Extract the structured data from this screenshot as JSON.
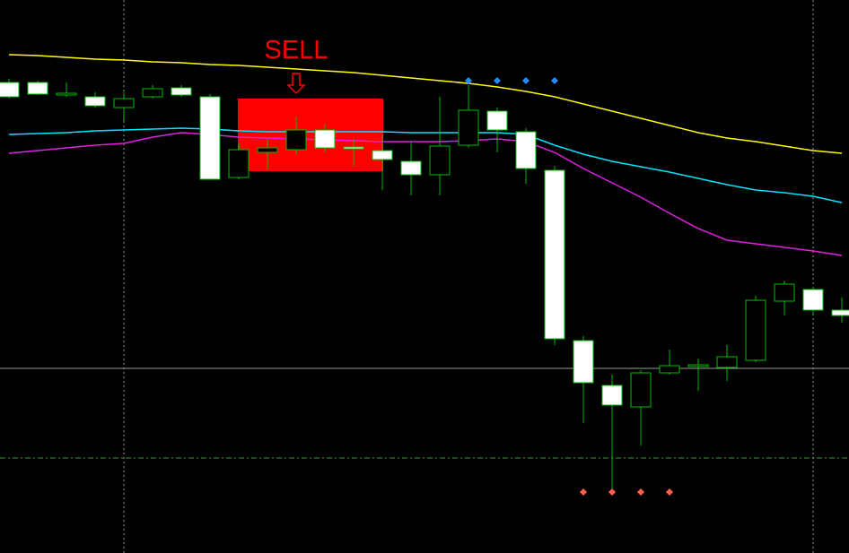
{
  "chart_data": {
    "type": "candlestick",
    "ylim": [
      0,
      617
    ],
    "candle_up_color": "#000000",
    "candle_down_color": "#ffffff",
    "wick_color": "#00c000",
    "open": [
      525,
      525,
      511,
      509,
      497,
      509,
      519,
      509,
      419,
      447,
      450,
      472,
      453,
      449,
      437,
      422,
      455,
      493,
      470,
      427,
      237,
      187,
      163,
      201,
      208,
      207,
      215,
      281,
      294,
      271
    ],
    "high": [
      529,
      527,
      525,
      514,
      514,
      522,
      522,
      512,
      457,
      462,
      487,
      479,
      462,
      467,
      459,
      509,
      522,
      497,
      474,
      432,
      242,
      199,
      204,
      227,
      217,
      232,
      287,
      304,
      297,
      285
    ],
    "low": [
      507,
      511,
      509,
      497,
      482,
      507,
      509,
      417,
      417,
      427,
      445,
      447,
      432,
      405,
      399,
      399,
      452,
      447,
      412,
      232,
      145,
      69,
      120,
      199,
      181,
      192,
      213,
      265,
      267,
      257
    ],
    "close": [
      509,
      512,
      513,
      499,
      507,
      518,
      511,
      417,
      450,
      452,
      472,
      452,
      451,
      439,
      422,
      454,
      494,
      472,
      429,
      239,
      190,
      165,
      201,
      209,
      210,
      219,
      282,
      300,
      271,
      265
    ],
    "lines": [
      {
        "color": "#ffff00",
        "values": [
          556,
          555,
          553,
          551,
          550,
          548,
          547,
          545,
          544,
          542,
          540,
          538,
          536,
          533,
          530,
          527,
          524,
          520,
          515,
          509,
          501,
          493,
          485,
          477,
          469,
          463,
          459,
          454,
          449,
          446
        ]
      },
      {
        "color": "#00e5ff",
        "values": [
          467,
          468,
          469,
          471,
          472,
          473,
          474,
          473,
          471,
          470,
          470,
          470,
          470,
          470,
          469,
          469,
          469,
          469,
          467,
          455,
          445,
          437,
          431,
          425,
          418,
          411,
          405,
          402,
          398,
          391
        ]
      },
      {
        "color": "#e020e0",
        "values": [
          446,
          449,
          452,
          455,
          457,
          464,
          469,
          467,
          464,
          463,
          462,
          461,
          460,
          459,
          459,
          459,
          460,
          462,
          459,
          447,
          429,
          413,
          397,
          379,
          362,
          349,
          345,
          341,
          337,
          332
        ]
      }
    ],
    "markers": [
      {
        "color": "#1e90ff",
        "values": [
          null,
          null,
          null,
          null,
          null,
          null,
          null,
          null,
          null,
          null,
          null,
          null,
          null,
          null,
          null,
          null,
          527,
          527,
          527,
          527,
          null,
          null,
          null,
          null,
          null,
          null,
          null,
          null,
          null,
          null
        ]
      },
      {
        "color": "#ff6050",
        "values": [
          null,
          null,
          null,
          null,
          null,
          null,
          null,
          null,
          null,
          null,
          null,
          null,
          null,
          null,
          null,
          null,
          null,
          null,
          null,
          null,
          68,
          68,
          68,
          68,
          null,
          null,
          null,
          null,
          null,
          null
        ]
      }
    ],
    "levels": [
      {
        "value": 206,
        "color": "#9a9a9a"
      },
      {
        "value": 106,
        "color": "#3a9a3a"
      }
    ],
    "sell_zone": {
      "label": "SELL",
      "high": 507,
      "low": 426,
      "color": "#ff0000"
    }
  }
}
